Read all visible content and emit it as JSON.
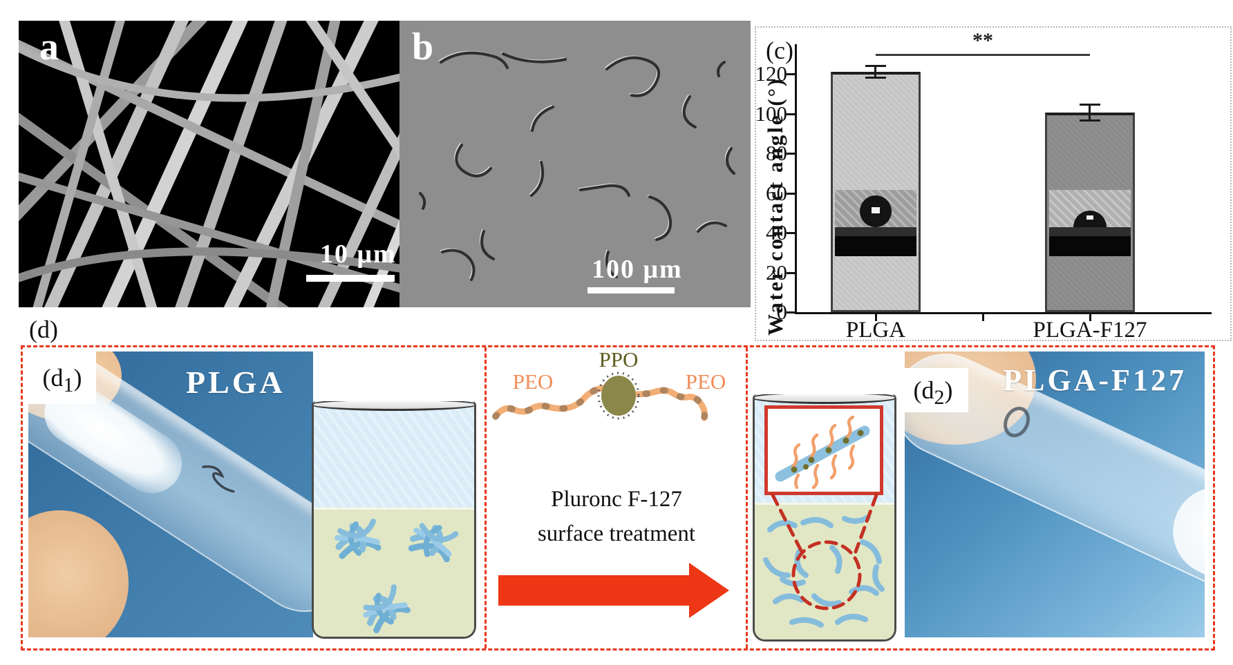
{
  "panel_a": {
    "label": "a",
    "scale_bar_text": "10 μm"
  },
  "panel_b": {
    "label": "b",
    "scale_bar_text": "100 μm"
  },
  "panel_c": {
    "label": "(c)"
  },
  "chart_data": {
    "type": "bar",
    "categories": [
      "PLGA",
      "PLGA-F127"
    ],
    "values": [
      121,
      100.5
    ],
    "error_bars": [
      3.5,
      4.5
    ],
    "title": "",
    "xlabel": "",
    "ylabel": "Water contact angle (°)",
    "ylim": [
      0,
      135
    ],
    "yticks": [
      0,
      20,
      40,
      60,
      80,
      100,
      120
    ],
    "grid": false,
    "legend": null,
    "significance_label": "**",
    "significance_y": 130,
    "bar_colors": [
      "#cbcbcb",
      "#8f8f8f"
    ],
    "insets": [
      "sessile-water-drop-photo-high-angle",
      "sessile-water-drop-photo-lower-angle"
    ]
  },
  "panel_d": {
    "label": "(d)",
    "d1": {
      "prefix": "(d",
      "sub": "1",
      "suffix": ")",
      "caption": "PLGA"
    },
    "d2": {
      "prefix": "(d",
      "sub": "2",
      "suffix": ")",
      "caption": "PLGA-F127"
    },
    "molecule": {
      "peo_left": "PEO",
      "ppo": "PPO",
      "peo_right": "PEO"
    },
    "process": {
      "line1": "Pluronc F-127",
      "line2": "surface treatment"
    }
  },
  "colors": {
    "dashed_border_red": "#e8371e",
    "arrow_red": "#ee3715",
    "photo_background_blue": "#3b79ab",
    "fiber_blue": "#85bcdc",
    "liquid_green": "#e1e7c5",
    "air_blue": "#d9ecf7",
    "peo_orange": "#f08c58",
    "ppo_olive": "#5d5d20",
    "bar_plga": "#cbcbcb",
    "bar_plga_f127": "#8f8f8f"
  }
}
